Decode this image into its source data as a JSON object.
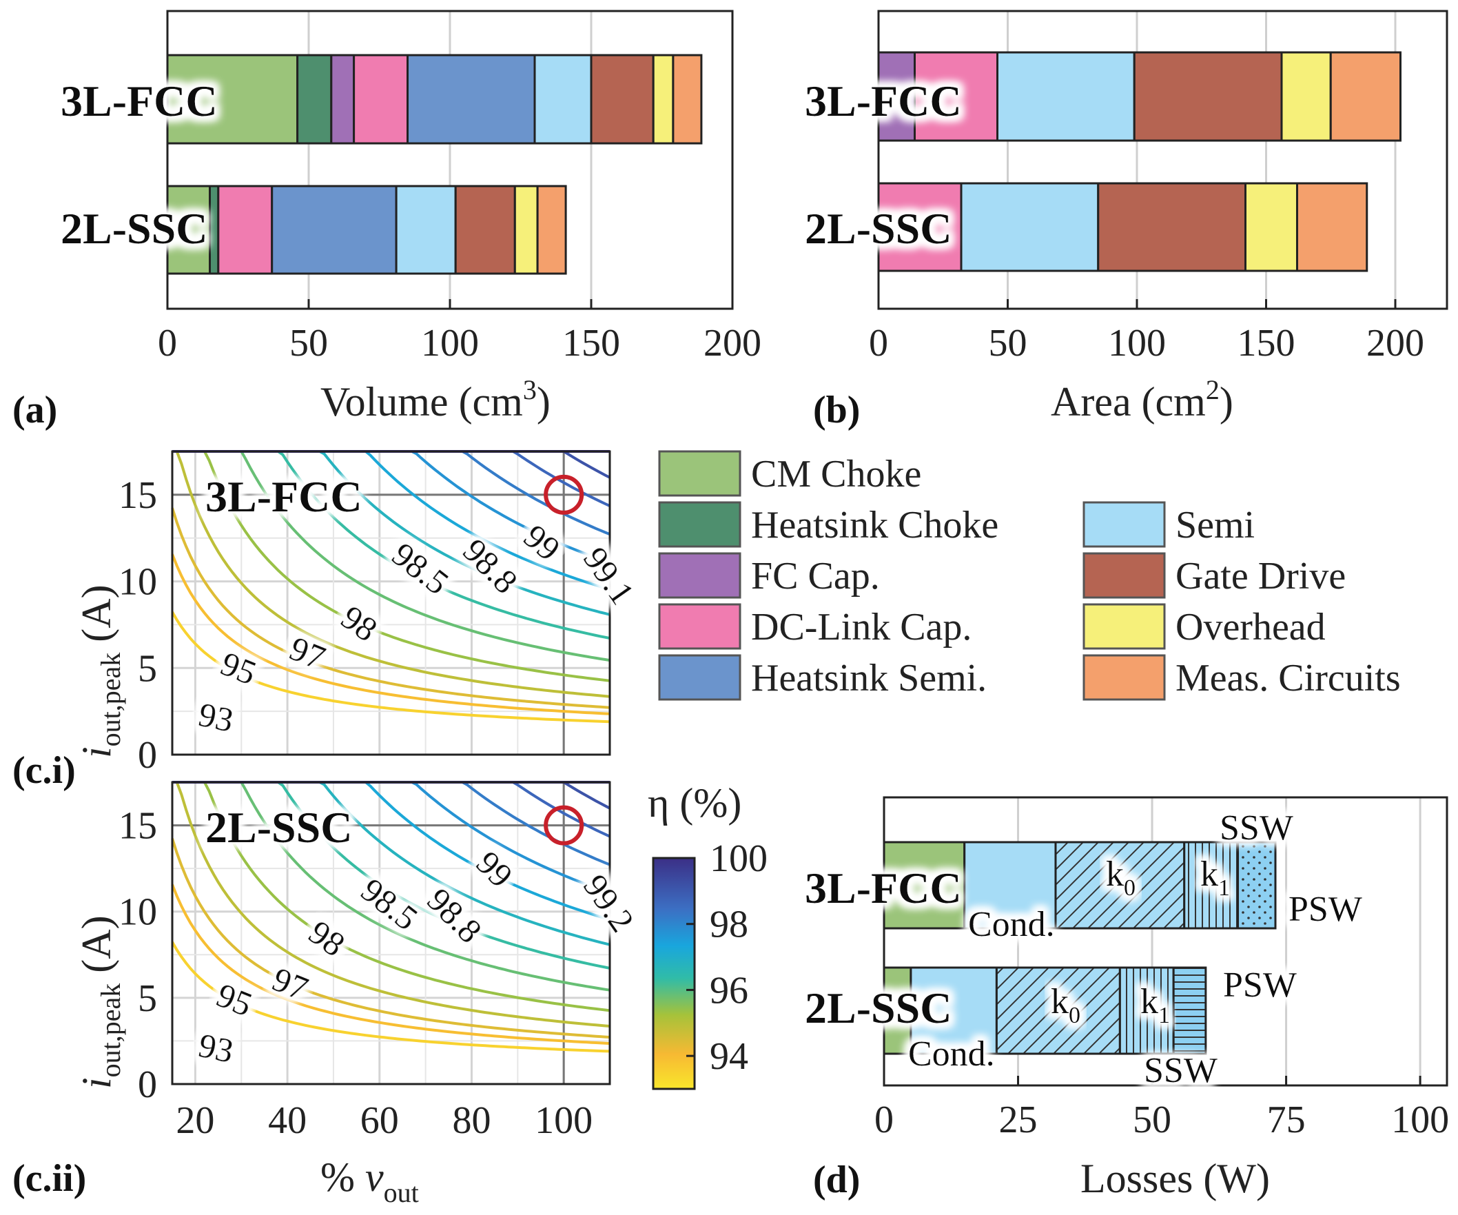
{
  "colors": {
    "CM Choke": "#9bc47a",
    "Heatsink Choke": "#4e8f6e",
    "FC Cap.": "#a070b6",
    "DC-Link Cap.": "#f07cb0",
    "Heatsink Semi.": "#6b94cc",
    "Semi": "#a6dcf6",
    "Gate Drive": "#b56452",
    "Overhead": "#f6f07a",
    "Meas. Circuits": "#f4a06c",
    "contour_marker": "#c8202a"
  },
  "legend": {
    "left": [
      "CM Choke",
      "Heatsink Choke",
      "FC Cap.",
      "DC-Link Cap.",
      "Heatsink Semi."
    ],
    "right": [
      "Semi",
      "Gate Drive",
      "Overhead",
      "Meas. Circuits"
    ]
  },
  "labels": {
    "a": "(a)",
    "b": "(b)",
    "ci": "(c.i)",
    "cii": "(c.ii)",
    "d": "(d)",
    "fcc": "3L-FCC",
    "ssc": "2L-SSC",
    "eta": "η (%)",
    "cond": "Cond.",
    "k0": "k",
    "k0sub": "0",
    "k1": "k",
    "k1sub": "1",
    "ssw": "SSW",
    "psw": "PSW"
  },
  "chart_data": [
    {
      "panel": "a",
      "type": "bar",
      "orientation": "horizontal-stacked",
      "xlabel": "Volume (cm",
      "xlabel_sup": "3",
      "xlabel_end": ")",
      "xlim": [
        0,
        200
      ],
      "xticks": [
        "0",
        "50",
        "100",
        "150",
        "200"
      ],
      "grid": true,
      "series": [
        {
          "name": "3L-FCC",
          "segments": [
            [
              "CM Choke",
              46
            ],
            [
              "Heatsink Choke",
              12
            ],
            [
              "FC Cap.",
              8
            ],
            [
              "DC-Link Cap.",
              19
            ],
            [
              "Heatsink Semi.",
              45
            ],
            [
              "Semi",
              20
            ],
            [
              "Gate Drive",
              22
            ],
            [
              "Overhead",
              7
            ],
            [
              "Meas. Circuits",
              10
            ]
          ]
        },
        {
          "name": "2L-SSC",
          "segments": [
            [
              "CM Choke",
              15
            ],
            [
              "Heatsink Choke",
              3
            ],
            [
              "DC-Link Cap.",
              19
            ],
            [
              "Heatsink Semi.",
              44
            ],
            [
              "Semi",
              21
            ],
            [
              "Gate Drive",
              21
            ],
            [
              "Overhead",
              8
            ],
            [
              "Meas. Circuits",
              10
            ]
          ]
        }
      ]
    },
    {
      "panel": "b",
      "type": "bar",
      "orientation": "horizontal-stacked",
      "xlabel": "Area (cm",
      "xlabel_sup": "2",
      "xlabel_end": ")",
      "xlim": [
        0,
        220
      ],
      "xticks": [
        "0",
        "50",
        "100",
        "150",
        "200"
      ],
      "grid": true,
      "series": [
        {
          "name": "3L-FCC",
          "segments": [
            [
              "FC Cap.",
              14
            ],
            [
              "DC-Link Cap.",
              32
            ],
            [
              "Semi",
              53
            ],
            [
              "Gate Drive",
              57
            ],
            [
              "Overhead",
              19
            ],
            [
              "Meas. Circuits",
              27
            ]
          ]
        },
        {
          "name": "2L-SSC",
          "segments": [
            [
              "DC-Link Cap.",
              32
            ],
            [
              "Semi",
              53
            ],
            [
              "Gate Drive",
              57
            ],
            [
              "Overhead",
              20
            ],
            [
              "Meas. Circuits",
              27
            ]
          ]
        }
      ]
    },
    {
      "panel": "c.i",
      "type": "contour",
      "title": "3L-FCC",
      "xlabel": "% v",
      "ylabel": "i",
      "xlim": [
        15,
        110
      ],
      "ylim": [
        0,
        17.5
      ],
      "yticks": [
        "0",
        "5",
        "10",
        "15"
      ],
      "xticks": [
        "20",
        "40",
        "60",
        "80",
        "100"
      ],
      "labeled_levels": [
        "93",
        "95",
        "97",
        "98",
        "98.5",
        "98.8",
        "99",
        "99.1"
      ],
      "operating_point": [
        100,
        15
      ]
    },
    {
      "panel": "c.ii",
      "type": "contour",
      "title": "2L-SSC",
      "xlabel": "% v",
      "ylabel": "i",
      "xlim": [
        15,
        110
      ],
      "ylim": [
        0,
        17.5
      ],
      "yticks": [
        "0",
        "5",
        "10",
        "15"
      ],
      "xticks": [
        "20",
        "40",
        "60",
        "80",
        "100"
      ],
      "labeled_levels": [
        "93",
        "95",
        "97",
        "98",
        "98.5",
        "98.8",
        "99",
        "99.2"
      ],
      "operating_point": [
        100,
        15
      ],
      "colorbar": {
        "label": "η (%)",
        "range": [
          93,
          100
        ],
        "ticks": [
          "94",
          "96",
          "98",
          "100"
        ]
      }
    },
    {
      "panel": "d",
      "type": "bar",
      "orientation": "horizontal-stacked",
      "xlabel": "Losses (W)",
      "xlim": [
        0,
        105
      ],
      "xticks": [
        "0",
        "25",
        "50",
        "75",
        "100"
      ],
      "grid": true,
      "series": [
        {
          "name": "3L-FCC",
          "segments": [
            [
              "CM Choke",
              15
            ],
            [
              "Cond.",
              17
            ],
            [
              "k0",
              24
            ],
            [
              "k1",
              10
            ],
            [
              "PSW",
              7
            ]
          ]
        },
        {
          "name": "2L-SSC",
          "segments": [
            [
              "CM Choke",
              5
            ],
            [
              "Cond.",
              16
            ],
            [
              "k0",
              23
            ],
            [
              "k1",
              10
            ],
            [
              "SSW",
              6
            ]
          ]
        }
      ]
    }
  ]
}
